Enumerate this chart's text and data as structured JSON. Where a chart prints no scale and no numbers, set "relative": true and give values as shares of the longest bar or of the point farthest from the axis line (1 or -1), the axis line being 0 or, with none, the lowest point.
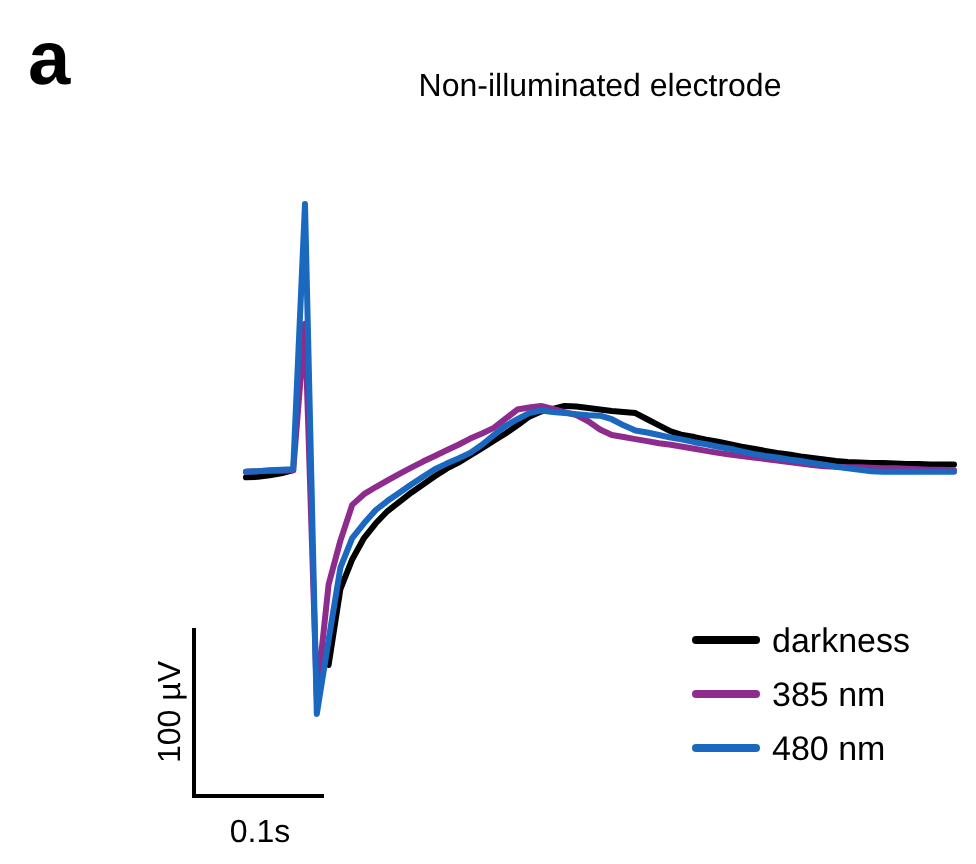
{
  "chart_data": {
    "type": "line",
    "title": "Non-illuminated electrode",
    "relative": true,
    "legend": "bottom right",
    "line_style": "solid",
    "annotations": [
      "a",
      "100 µV",
      "0.1s"
    ],
    "categories": [
      null,
      null,
      null,
      null,
      null,
      null,
      null,
      null,
      null,
      null,
      null,
      null,
      null,
      null,
      null,
      null,
      null,
      null,
      null,
      null,
      null,
      null,
      null,
      null,
      null,
      null,
      null,
      null,
      null,
      null,
      null,
      null,
      null,
      null,
      null,
      null,
      null,
      null,
      null,
      null,
      null,
      null,
      null,
      null,
      null,
      null,
      null,
      null,
      null,
      null,
      null,
      null,
      null,
      null,
      null,
      null,
      null,
      null,
      null,
      null,
      null
    ],
    "series": [
      {
        "name": "darkness",
        "color": "#000000",
        "values": [
          0.464,
          0.465,
          0.468,
          0.472,
          0.478,
          null,
          null,
          0.096,
          0.245,
          0.303,
          0.345,
          0.374,
          0.398,
          0.416,
          0.434,
          0.45,
          0.466,
          0.481,
          0.493,
          0.507,
          0.521,
          0.536,
          0.55,
          0.566,
          0.583,
          0.593,
          0.598,
          0.604,
          0.603,
          0.6,
          0.597,
          0.594,
          0.592,
          0.59,
          0.578,
          0.566,
          0.554,
          0.547,
          0.543,
          0.538,
          0.534,
          0.529,
          0.524,
          0.52,
          0.516,
          0.512,
          0.509,
          0.505,
          0.502,
          0.499,
          0.496,
          0.494,
          0.493,
          0.492,
          0.492,
          0.491,
          0.49,
          0.49,
          0.489,
          0.489,
          0.489
        ]
      },
      {
        "name": "385 nm",
        "color": "#8e2c8e",
        "values": [
          0.475,
          0.476,
          0.477,
          0.477,
          0.478,
          0.765,
          0.035,
          0.254,
          0.34,
          0.41,
          0.431,
          0.445,
          0.458,
          0.471,
          0.483,
          0.495,
          0.506,
          0.517,
          0.528,
          0.54,
          0.55,
          0.561,
          0.579,
          0.597,
          0.601,
          0.604,
          0.598,
          0.592,
          0.586,
          0.574,
          0.558,
          0.547,
          0.543,
          0.539,
          0.535,
          0.531,
          0.528,
          0.524,
          0.52,
          0.516,
          0.512,
          0.509,
          0.506,
          0.503,
          0.5,
          0.497,
          0.494,
          0.491,
          0.488,
          0.486,
          0.485,
          0.484,
          0.484,
          0.483,
          0.482,
          0.482,
          0.481,
          0.48,
          0.479,
          0.479,
          0.478
        ]
      },
      {
        "name": "480 nm",
        "color": "#1a68c0",
        "values": [
          0.475,
          0.476,
          0.478,
          0.479,
          0.48,
          1,
          0,
          0.145,
          0.287,
          0.345,
          0.374,
          0.4,
          0.418,
          0.434,
          0.45,
          0.465,
          0.48,
          0.491,
          0.501,
          0.512,
          0.528,
          0.547,
          0.565,
          0.578,
          0.59,
          0.595,
          0.592,
          0.59,
          0.588,
          0.586,
          0.585,
          0.578,
          0.566,
          0.556,
          0.552,
          0.547,
          0.542,
          0.538,
          0.533,
          0.529,
          0.524,
          0.52,
          0.515,
          0.51,
          0.506,
          0.503,
          0.499,
          0.496,
          0.492,
          0.489,
          0.485,
          0.482,
          0.479,
          0.476,
          0.475,
          0.475,
          0.475,
          0.475,
          0.475,
          0.475,
          0.475
        ]
      }
    ]
  }
}
